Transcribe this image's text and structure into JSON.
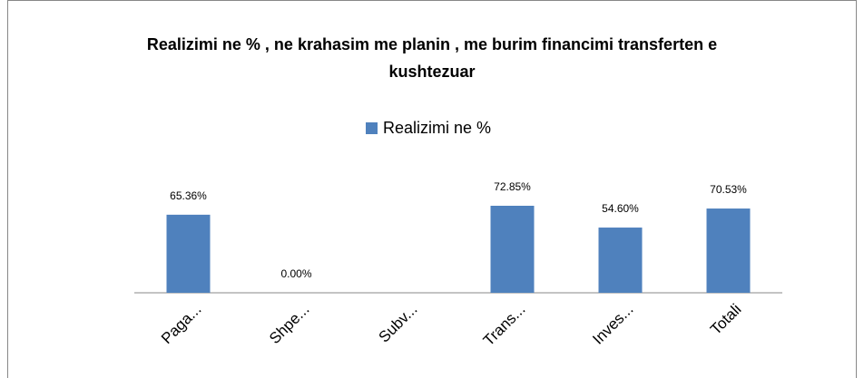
{
  "chart_data": {
    "type": "bar",
    "title": "Realizimi ne % , ne krahasim me planin , me burim financimi transferten e kushtezuar",
    "categories": [
      "Paga...",
      "Shpe...",
      "Subv...",
      "Trans...",
      "Inves...",
      "Totali"
    ],
    "series": [
      {
        "name": "Realizimi ne %",
        "color": "#4f81bd",
        "values": [
          65.36,
          0,
          null,
          72.85,
          54.6,
          70.53
        ],
        "value_labels": [
          "65.36%",
          "0.00%",
          null,
          "72.85%",
          "54.60%",
          "70.53%"
        ]
      }
    ],
    "legend": "top"
  }
}
